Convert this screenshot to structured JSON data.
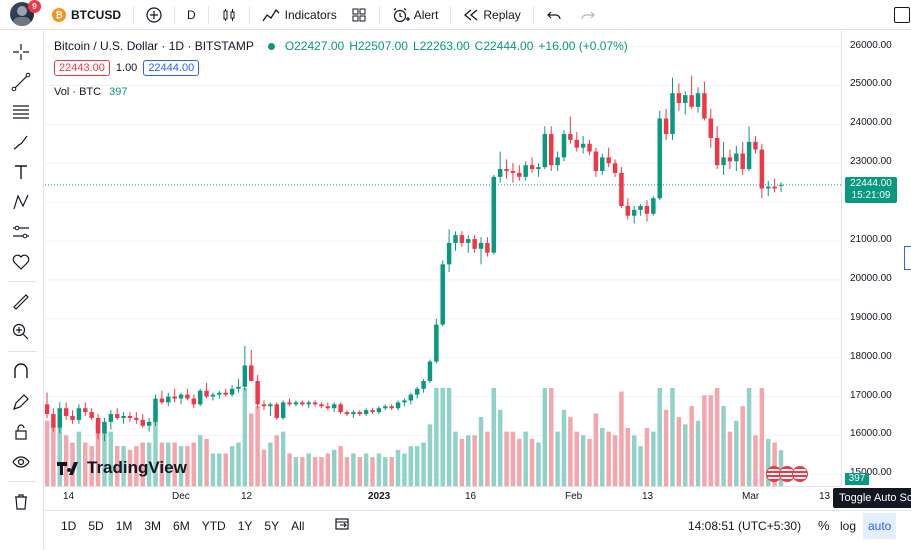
{
  "topbar": {
    "notif_count": "9",
    "symbol": "BTCUSD",
    "interval": "D",
    "indicators_label": "Indicators",
    "alert_label": "Alert",
    "replay_label": "Replay"
  },
  "legend": {
    "title": "Bitcoin / U.S. Dollar · 1D · BITSTAMP",
    "open": "O22427.00",
    "high": "H22507.00",
    "low": "L22263.00",
    "close": "C22444.00",
    "change": "+16.00 (+0.07%)",
    "bid": "22443.00",
    "spread": "1.00",
    "ask": "22444.00",
    "vol_label": "Vol · BTC",
    "vol_value": "397"
  },
  "price_axis": {
    "ticks": [
      "26000.00",
      "25000.00",
      "24000.00",
      "23000.00",
      "22000.00",
      "21000.00",
      "20000.00",
      "19000.00",
      "18000.00",
      "17000.00",
      "16000.00",
      "15000.00"
    ],
    "last_price": "22444.00",
    "countdown": "15:21:09",
    "vol_tag": "397"
  },
  "time_axis": {
    "ticks": [
      "14",
      "Dec",
      "12",
      "2023",
      "16",
      "Feb",
      "13",
      "Mar",
      "13"
    ]
  },
  "bottombar": {
    "ranges": [
      "1D",
      "5D",
      "1M",
      "3M",
      "6M",
      "YTD",
      "1Y",
      "5Y",
      "All"
    ],
    "clock": "14:08:51 (UTC+5:30)",
    "percent": "%",
    "log": "log",
    "auto": "auto"
  },
  "tooltip": "Toggle Auto Scale",
  "brand": "TradingView",
  "colors": {
    "up": "#089981",
    "down": "#f23645",
    "vol_up": "#8fd3c8",
    "vol_down": "#f5a5ab",
    "accent": "#2962ff"
  },
  "chart_data": {
    "type": "candlestick",
    "ylim": [
      14700,
      26400
    ],
    "candles": [
      [
        16800,
        17100,
        16450,
        16550
      ],
      [
        16550,
        16700,
        16100,
        16200
      ],
      [
        16200,
        16850,
        16050,
        16700
      ],
      [
        16700,
        16850,
        16400,
        16500
      ],
      [
        16500,
        16650,
        16300,
        16400
      ],
      [
        16400,
        16800,
        16300,
        16700
      ],
      [
        16700,
        16850,
        16500,
        16600
      ],
      [
        16600,
        16700,
        16400,
        16450
      ],
      [
        16450,
        16550,
        15900,
        16050
      ],
      [
        16050,
        16450,
        15850,
        16350
      ],
      [
        16350,
        16650,
        16150,
        16550
      ],
      [
        16550,
        16700,
        16400,
        16450
      ],
      [
        16450,
        16600,
        16300,
        16500
      ],
      [
        16500,
        16600,
        16350,
        16450
      ],
      [
        16450,
        16600,
        16300,
        16400
      ],
      [
        16400,
        16550,
        16200,
        16250
      ],
      [
        16250,
        16450,
        16100,
        16350
      ],
      [
        16350,
        17050,
        16250,
        16950
      ],
      [
        16950,
        17150,
        16800,
        16850
      ],
      [
        16850,
        17100,
        16750,
        17000
      ],
      [
        17000,
        17200,
        16850,
        16950
      ],
      [
        16950,
        17100,
        16800,
        17050
      ],
      [
        17050,
        17200,
        16900,
        16950
      ],
      [
        16950,
        17050,
        16700,
        16800
      ],
      [
        16800,
        17200,
        16750,
        17150
      ],
      [
        17150,
        17350,
        16950,
        17000
      ],
      [
        17000,
        17100,
        16900,
        17050
      ],
      [
        17050,
        17150,
        16950,
        17100
      ],
      [
        17100,
        17200,
        17000,
        17050
      ],
      [
        17050,
        17300,
        17000,
        17200
      ],
      [
        17200,
        17450,
        17100,
        17250
      ],
      [
        17250,
        18300,
        17150,
        17800
      ],
      [
        17800,
        18200,
        17450,
        17400
      ],
      [
        17400,
        17550,
        16700,
        16800
      ],
      [
        16800,
        16900,
        16650,
        16750
      ],
      [
        16750,
        16850,
        16500,
        16800
      ],
      [
        16800,
        16850,
        16400,
        16450
      ],
      [
        16450,
        16900,
        16400,
        16850
      ],
      [
        16850,
        16950,
        16750,
        16800
      ],
      [
        16800,
        16900,
        16750,
        16850
      ],
      [
        16850,
        16900,
        16750,
        16800
      ],
      [
        16800,
        16900,
        16700,
        16850
      ],
      [
        16850,
        16900,
        16750,
        16800
      ],
      [
        16800,
        16850,
        16700,
        16750
      ],
      [
        16750,
        16850,
        16650,
        16700
      ],
      [
        16700,
        16850,
        16600,
        16800
      ],
      [
        16800,
        16850,
        16550,
        16600
      ],
      [
        16600,
        16650,
        16500,
        16550
      ],
      [
        16550,
        16650,
        16450,
        16600
      ],
      [
        16600,
        16650,
        16500,
        16550
      ],
      [
        16550,
        16700,
        16500,
        16650
      ],
      [
        16650,
        16700,
        16550,
        16600
      ],
      [
        16600,
        16750,
        16550,
        16700
      ],
      [
        16700,
        16800,
        16650,
        16750
      ],
      [
        16750,
        16800,
        16650,
        16700
      ],
      [
        16700,
        16900,
        16650,
        16850
      ],
      [
        16850,
        16950,
        16750,
        16900
      ],
      [
        16900,
        17100,
        16800,
        17050
      ],
      [
        17050,
        17250,
        16950,
        17200
      ],
      [
        17200,
        17450,
        17100,
        17400
      ],
      [
        17400,
        17950,
        17350,
        17900
      ],
      [
        17900,
        19000,
        17850,
        18850
      ],
      [
        18850,
        20500,
        18800,
        20400
      ],
      [
        20400,
        21300,
        20200,
        20950
      ],
      [
        20950,
        21250,
        20750,
        21150
      ],
      [
        21150,
        21250,
        20850,
        20950
      ],
      [
        20950,
        21150,
        20700,
        21050
      ],
      [
        21050,
        21150,
        20700,
        20800
      ],
      [
        20800,
        21100,
        20400,
        20950
      ],
      [
        20950,
        21100,
        20600,
        20700
      ],
      [
        20700,
        22700,
        20650,
        22650
      ],
      [
        22650,
        23300,
        22500,
        22850
      ],
      [
        22850,
        23100,
        22600,
        22800
      ],
      [
        22800,
        23000,
        22500,
        22750
      ],
      [
        22750,
        22950,
        22550,
        22650
      ],
      [
        22650,
        23050,
        22550,
        22950
      ],
      [
        22950,
        23150,
        22750,
        22850
      ],
      [
        22850,
        23000,
        22650,
        22900
      ],
      [
        22900,
        23950,
        22850,
        23750
      ],
      [
        23750,
        23950,
        22800,
        22950
      ],
      [
        22950,
        23300,
        22800,
        23150
      ],
      [
        23150,
        23850,
        23050,
        23750
      ],
      [
        23750,
        24200,
        23500,
        23600
      ],
      [
        23600,
        23800,
        23300,
        23400
      ],
      [
        23400,
        23700,
        23250,
        23500
      ],
      [
        23500,
        23600,
        23200,
        23300
      ],
      [
        23300,
        23400,
        22650,
        22800
      ],
      [
        22800,
        23250,
        22700,
        23150
      ],
      [
        23150,
        23400,
        22900,
        23000
      ],
      [
        23000,
        23100,
        22650,
        22750
      ],
      [
        22750,
        22900,
        21850,
        21900
      ],
      [
        21900,
        22100,
        21550,
        21650
      ],
      [
        21650,
        21900,
        21450,
        21800
      ],
      [
        21800,
        21950,
        21650,
        21900
      ],
      [
        21900,
        22050,
        21500,
        21700
      ],
      [
        21700,
        22150,
        21650,
        22100
      ],
      [
        22100,
        24350,
        22050,
        24150
      ],
      [
        24150,
        24400,
        23600,
        23750
      ],
      [
        23750,
        25200,
        23600,
        24800
      ],
      [
        24800,
        25050,
        24350,
        24550
      ],
      [
        24550,
        24850,
        24250,
        24750
      ],
      [
        24750,
        25250,
        24400,
        24450
      ],
      [
        24450,
        24950,
        24300,
        24800
      ],
      [
        24800,
        25100,
        24100,
        24150
      ],
      [
        24150,
        24400,
        23400,
        23650
      ],
      [
        23650,
        23950,
        22850,
        22950
      ],
      [
        22950,
        23550,
        22700,
        23150
      ],
      [
        23150,
        23350,
        22850,
        23050
      ],
      [
        23050,
        23450,
        22800,
        23250
      ],
      [
        23250,
        23550,
        22700,
        22850
      ],
      [
        22850,
        23950,
        22800,
        23550
      ],
      [
        23550,
        23700,
        23250,
        23350
      ],
      [
        23350,
        23500,
        22100,
        22350
      ],
      [
        22350,
        22550,
        22150,
        22400
      ],
      [
        22400,
        22600,
        22250,
        22350
      ],
      [
        22427,
        22507,
        22263,
        22444
      ]
    ],
    "volume_range": [
      0,
      3000
    ]
  }
}
